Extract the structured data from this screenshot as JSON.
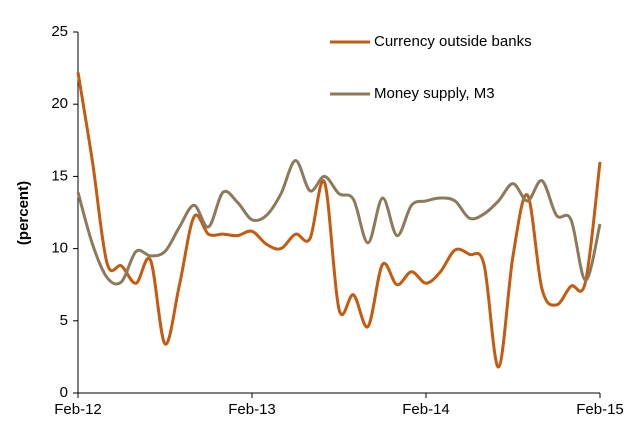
{
  "chart_data": {
    "type": "line",
    "y_label": "(percent)",
    "categories": [
      "Feb-12",
      null,
      null,
      null,
      null,
      null,
      null,
      null,
      null,
      null,
      null,
      null,
      "Feb-13",
      null,
      null,
      null,
      null,
      null,
      null,
      null,
      null,
      null,
      null,
      null,
      "Feb-14",
      null,
      null,
      null,
      null,
      null,
      null,
      null,
      null,
      null,
      null,
      null,
      "Feb-15"
    ],
    "series": [
      {
        "name": "Currency outside banks",
        "color": "#c55a11",
        "values": [
          22.2,
          16,
          9,
          8.8,
          7.6,
          9.2,
          3.4,
          7.5,
          12.2,
          11,
          11,
          10.9,
          11.2,
          10.3,
          10,
          11,
          10.7,
          14.6,
          5.8,
          6.8,
          4.6,
          8.9,
          7.5,
          8.4,
          7.6,
          8.4,
          9.9,
          9.6,
          8.9,
          1.8,
          9.5,
          13.7,
          7.2,
          6.1,
          7.4,
          7.7,
          16
        ]
      },
      {
        "name": "Money supply, M3",
        "color": "#8c7a5b",
        "values": [
          13.9,
          10.3,
          8,
          7.7,
          9.8,
          9.5,
          9.8,
          11.5,
          13,
          11.5,
          13.9,
          13.2,
          12,
          12.3,
          13.8,
          16.1,
          14,
          15,
          13.8,
          13.4,
          10.4,
          13.5,
          10.9,
          13,
          13.3,
          13.5,
          13.3,
          12.1,
          12.4,
          13.3,
          14.5,
          13.3,
          14.7,
          12.3,
          12,
          7.8,
          11.7
        ]
      }
    ],
    "ylim": [
      0,
      25
    ],
    "yticks": [
      0,
      5,
      10,
      15,
      20,
      25
    ],
    "grid": false,
    "legend": "top-right"
  }
}
